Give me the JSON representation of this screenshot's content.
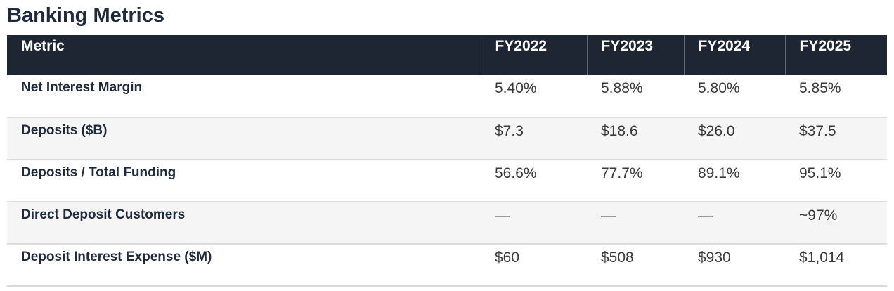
{
  "page": {
    "title": "Banking Metrics"
  },
  "table": {
    "columns": [
      "Metric",
      "FY2022",
      "FY2023",
      "FY2024",
      "FY2025"
    ],
    "rows": [
      {
        "metric": "Net Interest Margin",
        "values": [
          "5.40%",
          "5.88%",
          "5.80%",
          "5.85%"
        ]
      },
      {
        "metric": "Deposits ($B)",
        "values": [
          "$7.3",
          "$18.6",
          "$26.0",
          "$37.5"
        ]
      },
      {
        "metric": "Deposits / Total Funding",
        "values": [
          "56.6%",
          "77.7%",
          "89.1%",
          "95.1%"
        ]
      },
      {
        "metric": "Direct Deposit Customers",
        "values": [
          "—",
          "—",
          "—",
          "~97%"
        ]
      },
      {
        "metric": "Deposit Interest Expense ($M)",
        "values": [
          "$60",
          "$508",
          "$930",
          "$1,014"
        ]
      }
    ],
    "colors": {
      "header_bg": "#1e2633",
      "header_text": "#ffffff",
      "header_divider": "rgba(255,255,255,0.30)",
      "metric_text": "#1f2a3c",
      "value_text": "#3a3a3a",
      "row_alt_bg": "#f5f5f6",
      "row_border": "#dcdcdc",
      "title_text": "#1f2a3c"
    }
  }
}
